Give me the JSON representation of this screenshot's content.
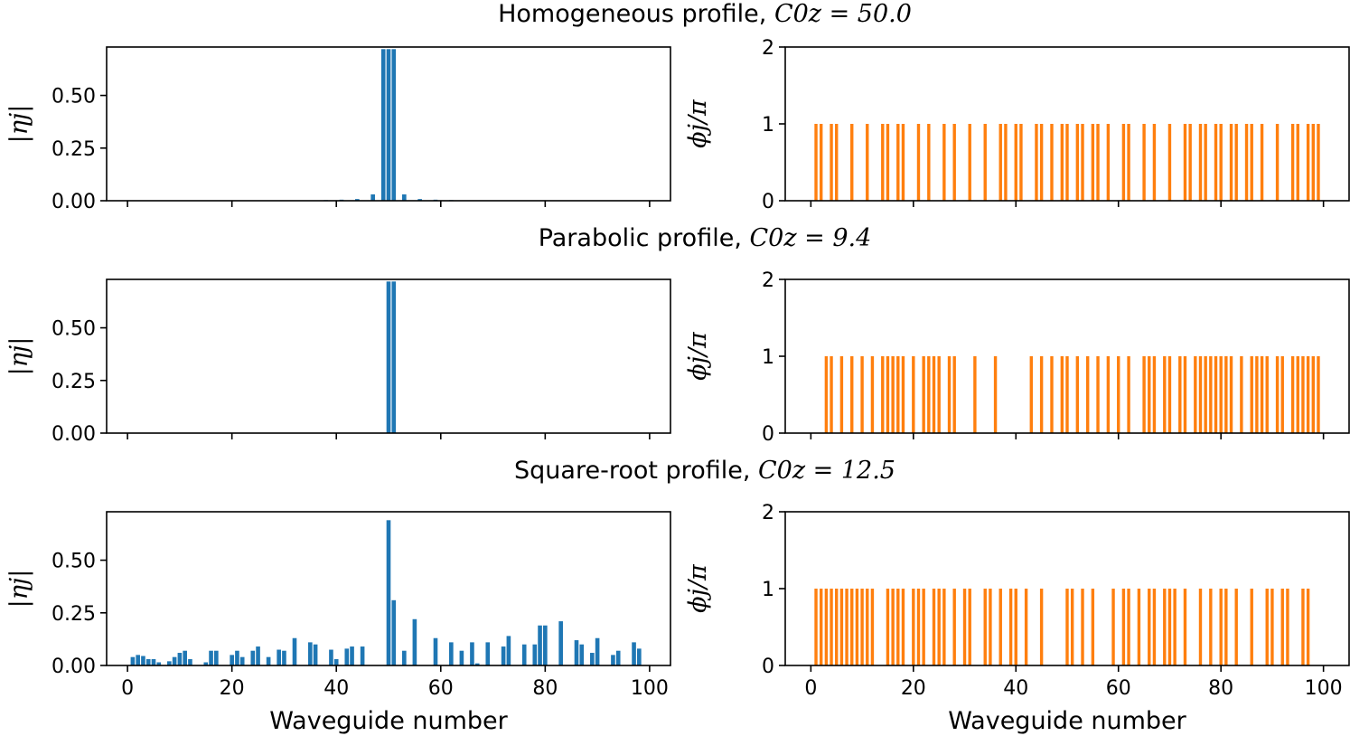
{
  "figure": {
    "colors": {
      "amplitude": "#1f77b4",
      "phase": "#ff7f0e"
    },
    "xlabel": "Waveguide number",
    "amp_ylabel": "|ηj|",
    "phase_ylabel": "ϕj/π"
  },
  "chart_data": [
    {
      "type": "bar",
      "title": "Homogeneous profile, C0z = 50.0",
      "title_prefix": "Homogeneous profile, ",
      "title_math": "C0z = 50.0",
      "amplitude": {
        "ylim": [
          0,
          0.73
        ],
        "yticks": [
          "0.00",
          "0.25",
          "0.50"
        ],
        "xlim": [
          -4,
          104
        ],
        "x": [
          35,
          38,
          41,
          44,
          47,
          49,
          50,
          51,
          53,
          56,
          59,
          62,
          65
        ],
        "values": [
          0.002,
          0.003,
          0.005,
          0.008,
          0.03,
          0.72,
          0.72,
          0.72,
          0.03,
          0.008,
          0.005,
          0.003,
          0.002
        ]
      },
      "phase": {
        "ylim": [
          0,
          2
        ],
        "yticks": [
          "0",
          "1",
          "2"
        ],
        "xlim": [
          -5,
          105
        ],
        "x": [
          1,
          2,
          4,
          5,
          8,
          11,
          14,
          15,
          17,
          18,
          21,
          23,
          26,
          28,
          31,
          34,
          37,
          38,
          40,
          41,
          44,
          45,
          47,
          49,
          50,
          52,
          53,
          55,
          56,
          58,
          61,
          62,
          65,
          67,
          70,
          73,
          74,
          76,
          77,
          79,
          80,
          82,
          83,
          85,
          86,
          88,
          91,
          94,
          95,
          97,
          98,
          99
        ],
        "values": [
          1,
          1,
          1,
          1,
          1,
          1,
          1,
          1,
          1,
          1,
          1,
          1,
          1,
          1,
          1,
          1,
          1,
          1,
          1,
          1,
          1,
          1,
          1,
          1,
          1,
          1,
          1,
          1,
          1,
          1,
          1,
          1,
          1,
          1,
          1,
          1,
          1,
          1,
          1,
          1,
          1,
          1,
          1,
          1,
          1,
          1,
          1,
          1,
          1,
          1,
          1,
          1
        ]
      }
    },
    {
      "type": "bar",
      "title": "Parabolic profile, C0z = 9.4",
      "title_prefix": "Parabolic profile, ",
      "title_math": "C0z = 9.4",
      "amplitude": {
        "ylim": [
          0,
          0.73
        ],
        "yticks": [
          "0.00",
          "0.25",
          "0.50"
        ],
        "xlim": [
          -4,
          104
        ],
        "x": [
          50,
          51
        ],
        "values": [
          0.72,
          0.72
        ]
      },
      "phase": {
        "ylim": [
          0,
          2
        ],
        "yticks": [
          "0",
          "1",
          "2"
        ],
        "xlim": [
          -5,
          105
        ],
        "x": [
          3,
          4,
          6,
          8,
          10,
          12,
          14,
          15,
          16,
          17,
          18,
          20,
          22,
          23,
          24,
          25,
          27,
          28,
          32,
          36,
          43,
          45,
          47,
          49,
          50,
          52,
          54,
          56,
          58,
          60,
          62,
          65,
          66,
          67,
          69,
          70,
          72,
          73,
          75,
          76,
          77,
          78,
          79,
          80,
          81,
          82,
          84,
          86,
          87,
          88,
          89,
          91,
          92,
          94,
          95,
          96,
          97,
          98,
          99
        ],
        "values": [
          1,
          1,
          1,
          1,
          1,
          1,
          1,
          1,
          1,
          1,
          1,
          1,
          1,
          1,
          1,
          1,
          1,
          1,
          1,
          1,
          1,
          1,
          1,
          1,
          1,
          1,
          1,
          1,
          1,
          1,
          1,
          1,
          1,
          1,
          1,
          1,
          1,
          1,
          1,
          1,
          1,
          1,
          1,
          1,
          1,
          1,
          1,
          1,
          1,
          1,
          1,
          1,
          1,
          1,
          1,
          1,
          1,
          1,
          1
        ]
      }
    },
    {
      "type": "bar",
      "title": "Square-root profile, C0z = 12.5",
      "title_prefix": "Square-root profile, ",
      "title_math": "C0z = 12.5",
      "amplitude": {
        "ylim": [
          0,
          0.73
        ],
        "yticks": [
          "0.00",
          "0.25",
          "0.50"
        ],
        "xticks": [
          "0",
          "20",
          "40",
          "60",
          "80",
          "100"
        ],
        "xlim": [
          -4,
          104
        ],
        "x": [
          1,
          2,
          3,
          4,
          5,
          6,
          8,
          9,
          10,
          11,
          12,
          15,
          16,
          17,
          20,
          21,
          22,
          24,
          25,
          27,
          29,
          30,
          32,
          35,
          36,
          39,
          40,
          42,
          43,
          45,
          50,
          51,
          53,
          55,
          59,
          62,
          64,
          66,
          67,
          69,
          72,
          73,
          76,
          78,
          79,
          80,
          83,
          86,
          87,
          89,
          90,
          93,
          94,
          97,
          98
        ],
        "values": [
          0.04,
          0.05,
          0.045,
          0.03,
          0.03,
          0.015,
          0.02,
          0.04,
          0.06,
          0.07,
          0.03,
          0.015,
          0.07,
          0.07,
          0.05,
          0.07,
          0.04,
          0.07,
          0.09,
          0.04,
          0.075,
          0.07,
          0.13,
          0.11,
          0.1,
          0.075,
          0.03,
          0.08,
          0.09,
          0.09,
          0.69,
          0.31,
          0.07,
          0.22,
          0.13,
          0.11,
          0.07,
          0.11,
          0.01,
          0.11,
          0.09,
          0.14,
          0.1,
          0.1,
          0.19,
          0.19,
          0.21,
          0.12,
          0.1,
          0.06,
          0.13,
          0.05,
          0.07,
          0.11,
          0.08
        ]
      },
      "phase": {
        "ylim": [
          0,
          2
        ],
        "yticks": [
          "0",
          "1",
          "2"
        ],
        "xticks": [
          "0",
          "20",
          "40",
          "60",
          "80",
          "100"
        ],
        "xlim": [
          -5,
          105
        ],
        "x": [
          1,
          2,
          3,
          4,
          5,
          6,
          7,
          8,
          9,
          10,
          11,
          12,
          15,
          16,
          17,
          18,
          20,
          21,
          22,
          24,
          25,
          26,
          28,
          30,
          31,
          34,
          35,
          37,
          39,
          40,
          42,
          45,
          50,
          51,
          53,
          55,
          59,
          61,
          62,
          64,
          66,
          67,
          69,
          70,
          71,
          73,
          76,
          78,
          80,
          81,
          83,
          86,
          89,
          90,
          92,
          93,
          96,
          97
        ],
        "values": [
          1,
          1,
          1,
          1,
          1,
          1,
          1,
          1,
          1,
          1,
          1,
          1,
          1,
          1,
          1,
          1,
          1,
          1,
          1,
          1,
          1,
          1,
          1,
          1,
          1,
          1,
          1,
          1,
          1,
          1,
          1,
          1,
          1,
          1,
          1,
          1,
          1,
          1,
          1,
          1,
          1,
          1,
          1,
          1,
          1,
          1,
          1,
          1,
          1,
          1,
          1,
          1,
          1,
          1,
          1,
          1,
          1,
          1
        ]
      }
    }
  ]
}
